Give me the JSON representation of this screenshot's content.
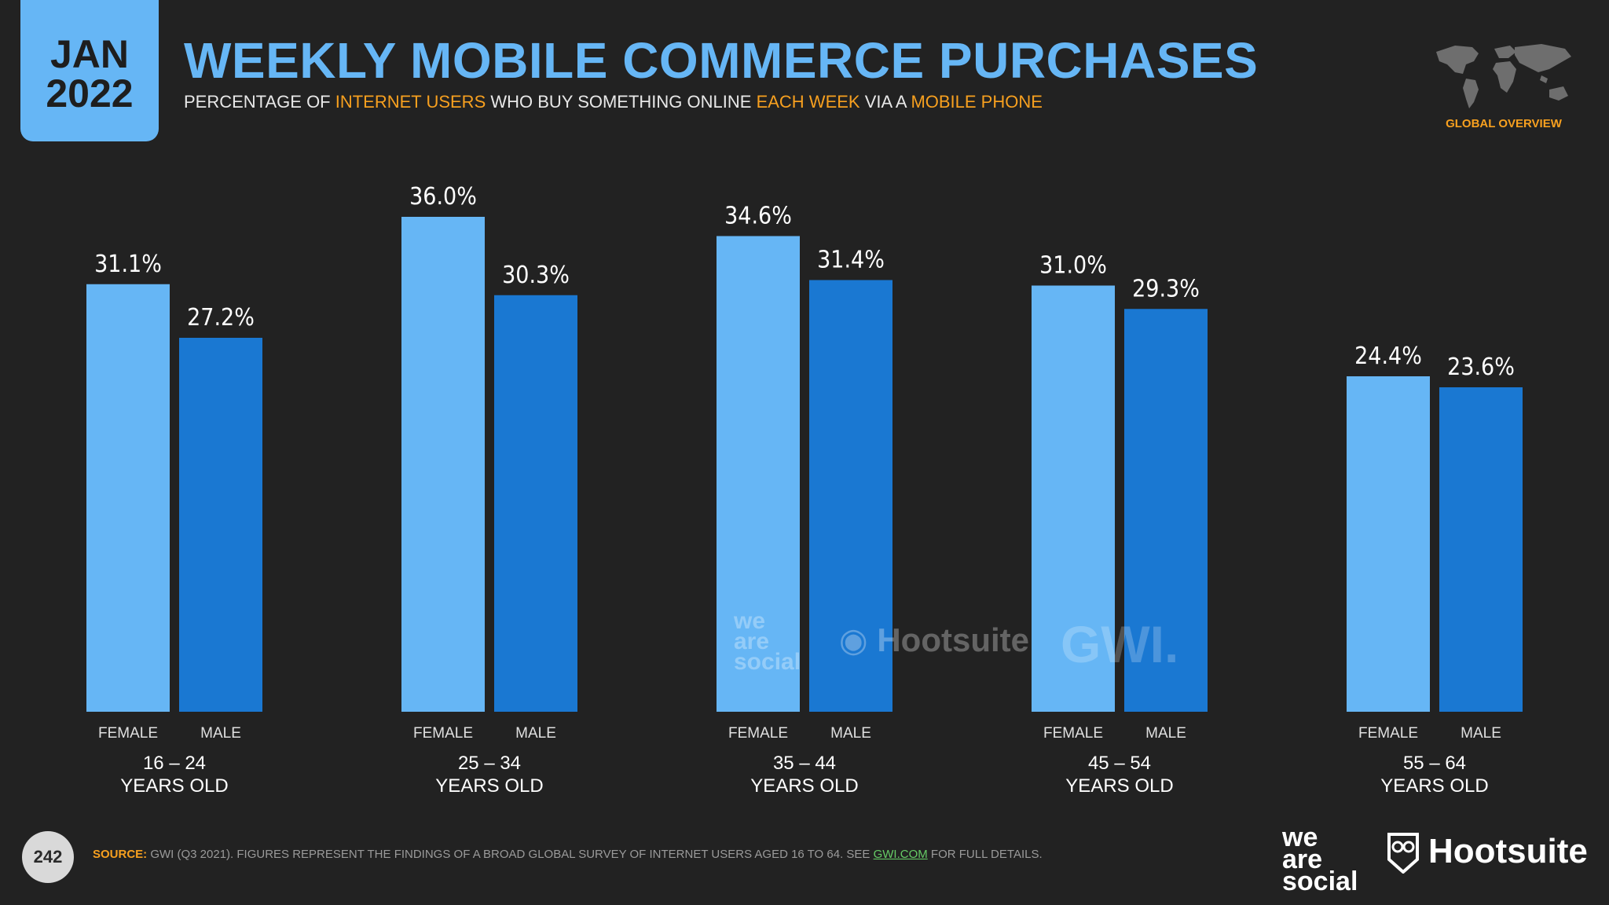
{
  "header": {
    "date_month": "JAN",
    "date_year": "2022",
    "title": "WEEKLY MOBILE COMMERCE PURCHASES",
    "subtitle_parts": {
      "p1": "PERCENTAGE OF ",
      "h1": "INTERNET USERS",
      "p2": " WHO BUY SOMETHING ONLINE ",
      "h2": "EACH WEEK",
      "p3": " VIA A ",
      "h3": "MOBILE PHONE"
    },
    "region_label": "GLOBAL OVERVIEW"
  },
  "colors": {
    "background": "#222222",
    "accent": "#66b6f5",
    "female_bar": "#66b6f5",
    "male_bar": "#1a78d2",
    "highlight": "#f7a01f"
  },
  "chart_data": {
    "type": "bar",
    "title": "WEEKLY MOBILE COMMERCE PURCHASES",
    "categories": [
      "16 – 24",
      "25 – 34",
      "35 – 44",
      "45 – 54",
      "55 – 64"
    ],
    "category_suffix": "YEARS OLD",
    "series": [
      {
        "name": "FEMALE",
        "values": [
          31.1,
          36.0,
          34.6,
          31.0,
          24.4
        ],
        "labels": [
          "31.1%",
          "36.0%",
          "34.6%",
          "31.0%",
          "24.4%"
        ]
      },
      {
        "name": "MALE",
        "values": [
          27.2,
          30.3,
          31.4,
          29.3,
          23.6
        ],
        "labels": [
          "27.2%",
          "30.3%",
          "31.4%",
          "29.3%",
          "23.6%"
        ]
      }
    ],
    "ylim": [
      0,
      36
    ],
    "xlabel": "",
    "ylabel": "",
    "grid": false
  },
  "watermarks": {
    "we_line1": "we",
    "we_line2": "are",
    "we_line3": "social",
    "hootsuite": "Hootsuite",
    "gwi": "GWI."
  },
  "footer": {
    "page_number": "242",
    "source_label": "SOURCE:",
    "source_text": " GWI (Q3 2021). FIGURES REPRESENT THE FINDINGS OF A BROAD GLOBAL SURVEY OF INTERNET USERS AGED 16 TO 64. SEE ",
    "source_link": "GWI.COM",
    "source_tail": " FOR FULL DETAILS.",
    "brand_we_1": "we",
    "brand_we_2": "are",
    "brand_we_3": "social",
    "brand_hootsuite": "Hootsuite"
  }
}
